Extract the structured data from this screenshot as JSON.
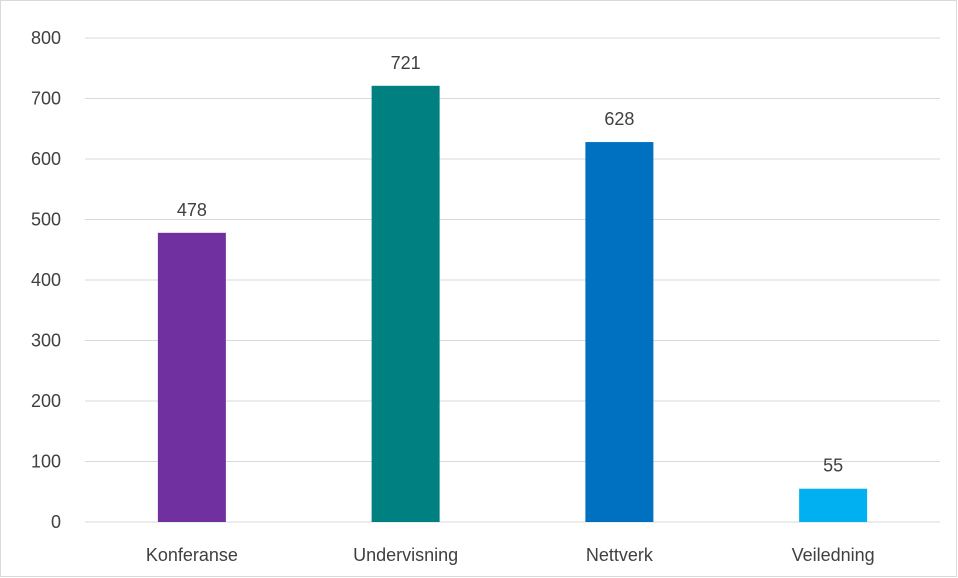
{
  "chart_data": {
    "type": "bar",
    "categories": [
      "Konferanse",
      "Undervisning",
      "Nettverk",
      "Veiledning"
    ],
    "values": [
      478,
      721,
      628,
      55
    ],
    "colors": [
      "#7030a0",
      "#008080",
      "#0070c0",
      "#00b0f0"
    ],
    "ylim": [
      0,
      800
    ],
    "yticks": [
      0,
      100,
      200,
      300,
      400,
      500,
      600,
      700,
      800
    ],
    "grid": true,
    "data_labels": true,
    "title": "",
    "xlabel": "",
    "ylabel": ""
  }
}
